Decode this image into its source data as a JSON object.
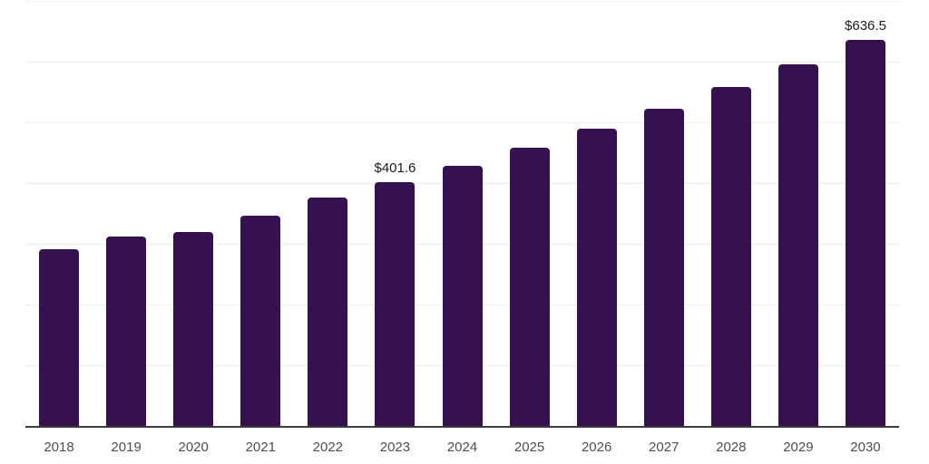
{
  "chart_data": {
    "type": "bar",
    "title": "",
    "xlabel": "",
    "ylabel": "",
    "categories": [
      "2018",
      "2019",
      "2020",
      "2021",
      "2022",
      "2023",
      "2024",
      "2025",
      "2026",
      "2027",
      "2028",
      "2029",
      "2030"
    ],
    "values": [
      291.5,
      311.7,
      319.3,
      346.0,
      375.8,
      401.6,
      428.9,
      458.1,
      489.2,
      522.5,
      558.0,
      595.9,
      636.5
    ],
    "point_labels": [
      "",
      "",
      "",
      "",
      "",
      "$401.6",
      "",
      "",
      "",
      "",
      "",
      "",
      "$636.5"
    ],
    "ylim": [
      0,
      700
    ],
    "grid_step": 100,
    "grid": true,
    "legend": "none",
    "y_tick_labels_visible": false,
    "colors": {
      "bar": "#36114f",
      "gridline": "#eeeeee",
      "axis": "#3c3c3c",
      "tick_label": "#4e4e4e",
      "data_label": "#1b1b1b",
      "background": "#ffffff"
    }
  }
}
